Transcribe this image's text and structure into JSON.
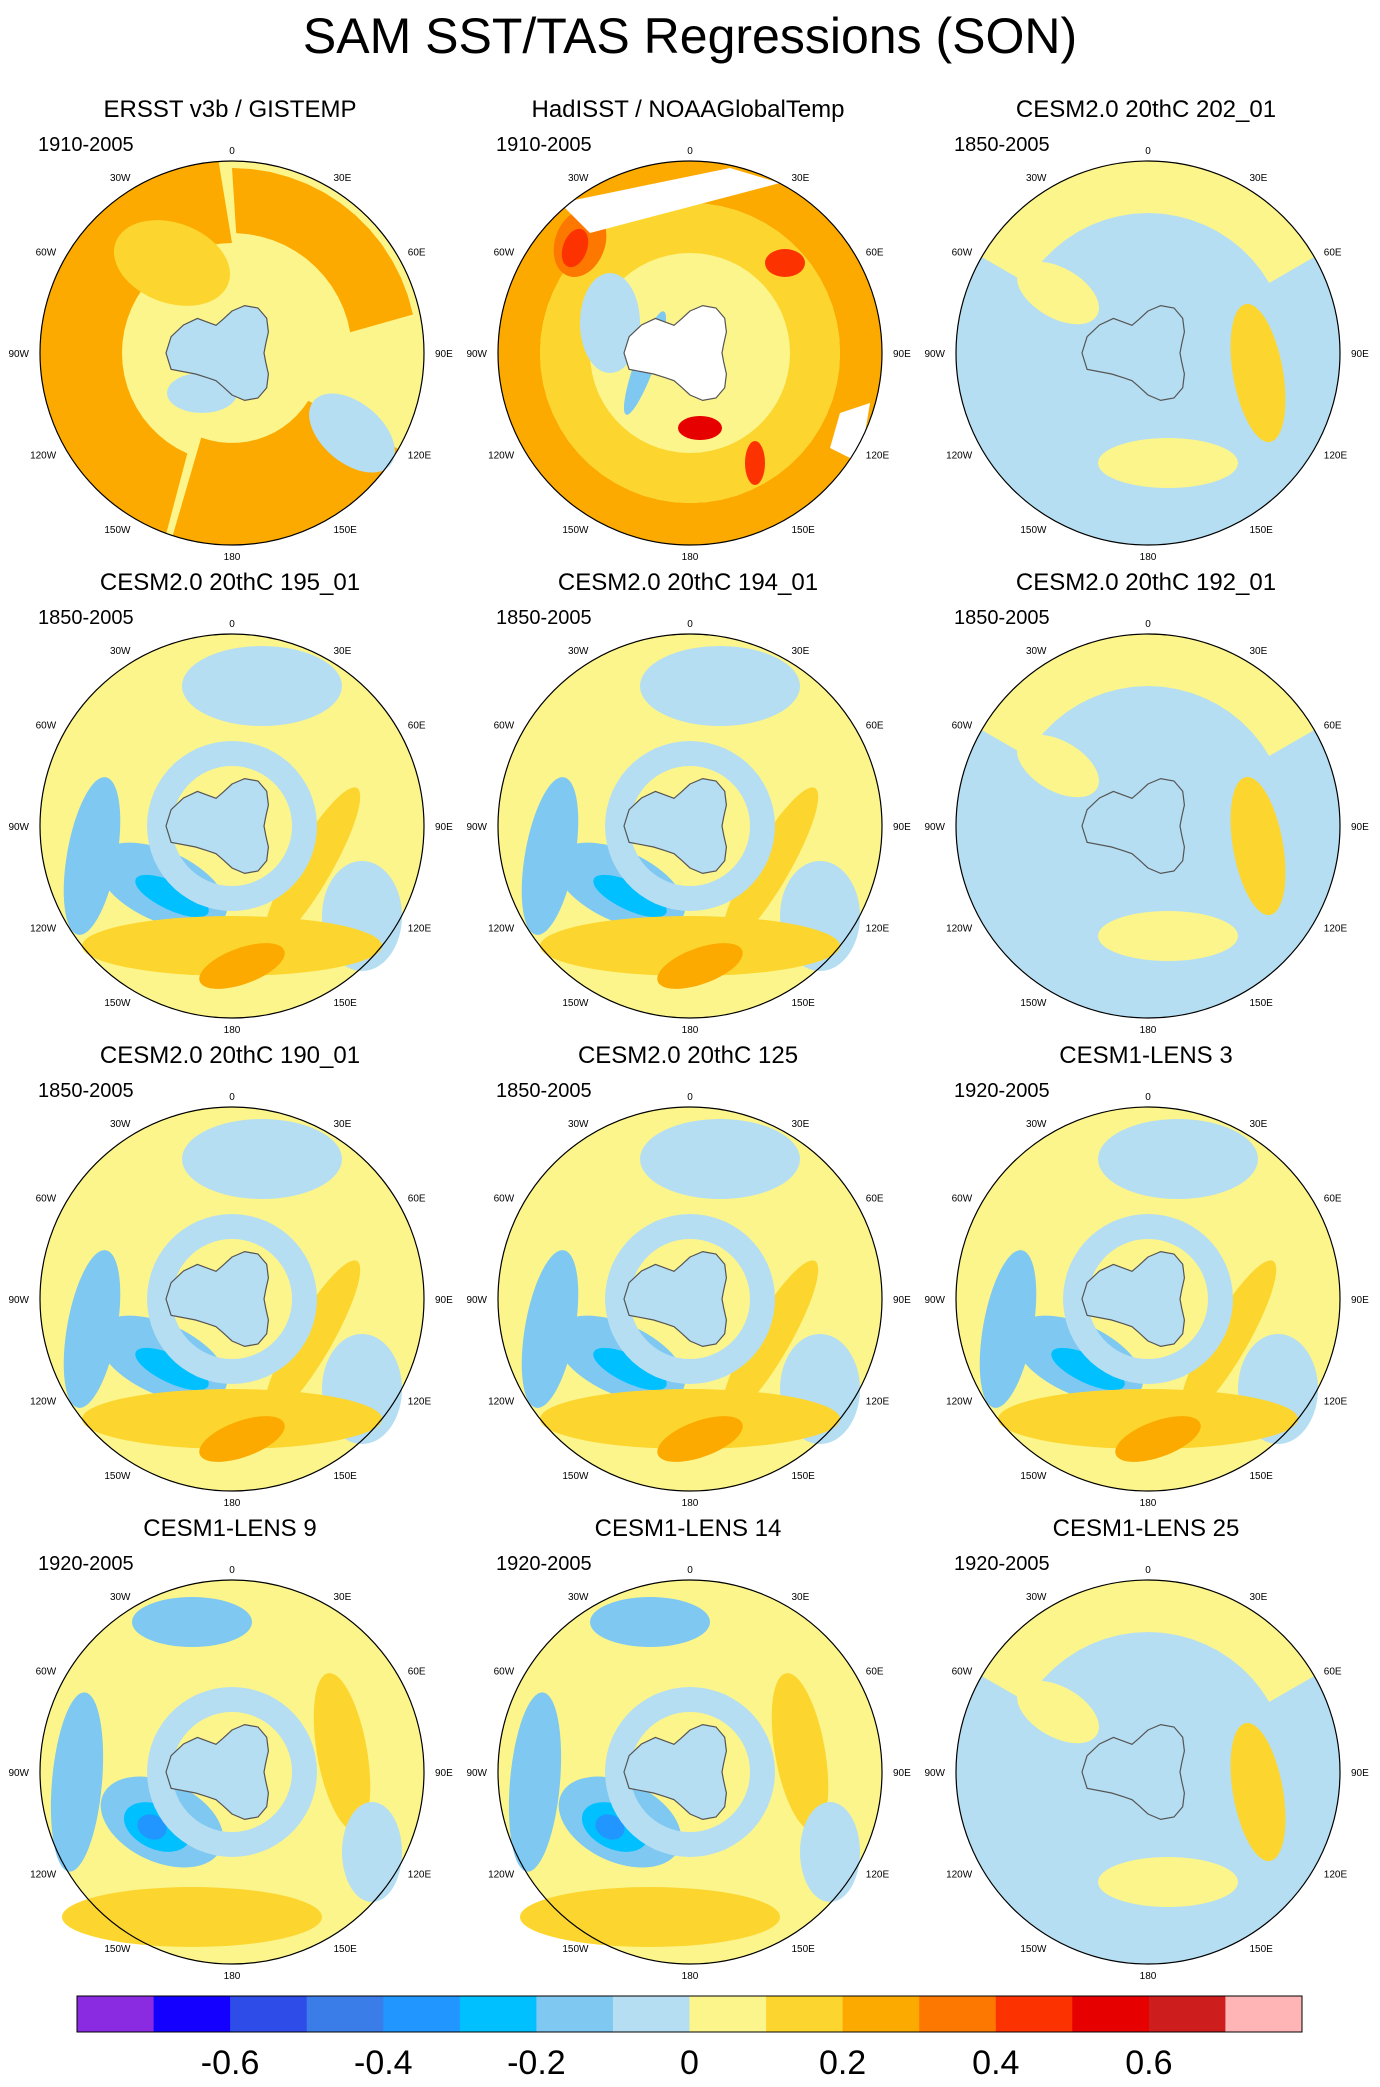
{
  "figure": {
    "title": "SAM SST/TAS Regressions (SON)"
  },
  "panels": [
    {
      "title": "ERSST v3b / GISTEMP",
      "period": "1910-2005",
      "pattern": "ersst"
    },
    {
      "title": "HadISST / NOAAGlobalTemp",
      "period": "1910-2005",
      "pattern": "hadisst"
    },
    {
      "title": "CESM2.0 20thC 202_01",
      "period": "1850-2005",
      "pattern": "weak"
    },
    {
      "title": "CESM2.0 20thC 195_01",
      "period": "1850-2005",
      "pattern": "model"
    },
    {
      "title": "CESM2.0 20thC 194_01",
      "period": "1850-2005",
      "pattern": "model"
    },
    {
      "title": "CESM2.0 20thC 192_01",
      "period": "1850-2005",
      "pattern": "weak"
    },
    {
      "title": "CESM2.0 20thC 190_01",
      "period": "1850-2005",
      "pattern": "model"
    },
    {
      "title": "CESM2.0 20thC 125",
      "period": "1850-2005",
      "pattern": "model"
    },
    {
      "title": "CESM1-LENS 3",
      "period": "1920-2005",
      "pattern": "model"
    },
    {
      "title": "CESM1-LENS 9",
      "period": "1920-2005",
      "pattern": "strong"
    },
    {
      "title": "CESM1-LENS 14",
      "period": "1920-2005",
      "pattern": "strong"
    },
    {
      "title": "CESM1-LENS 25",
      "period": "1920-2005",
      "pattern": "weak"
    }
  ],
  "map": {
    "projection": "south polar stereographic",
    "longitude_labels": [
      "0",
      "30E",
      "60E",
      "90E",
      "120E",
      "150E",
      "180",
      "150W",
      "120W",
      "90W",
      "60W",
      "30W"
    ]
  },
  "colorbar": {
    "colors": [
      "#8a2be2",
      "#1400ff",
      "#2d4ce8",
      "#3b7de8",
      "#2196ff",
      "#00c0ff",
      "#7ec8f2",
      "#b5def2",
      "#fcf58c",
      "#fcd62f",
      "#fcaa00",
      "#fc7800",
      "#fc3200",
      "#e60000",
      "#cd1d1d",
      "#ffb5b5"
    ],
    "labels": [
      "-0.6",
      "-0.4",
      "-0.2",
      "0",
      "0.2",
      "0.4",
      "0.6"
    ]
  },
  "chart_data": {
    "type": "heatmap",
    "title": "SAM SST/TAS Regressions (SON)",
    "colorbar_ticks": [
      -0.6,
      -0.4,
      -0.2,
      0,
      0.2,
      0.4,
      0.6
    ],
    "panels": [
      "ERSST v3b / GISTEMP",
      "HadISST / NOAAGlobalTemp",
      "CESM2.0 20thC 202_01",
      "CESM2.0 20thC 195_01",
      "CESM2.0 20thC 194_01",
      "CESM2.0 20thC 192_01",
      "CESM2.0 20thC 190_01",
      "CESM2.0 20thC 125",
      "CESM1-LENS 3",
      "CESM1-LENS 9",
      "CESM1-LENS 14",
      "CESM1-LENS 25"
    ]
  }
}
